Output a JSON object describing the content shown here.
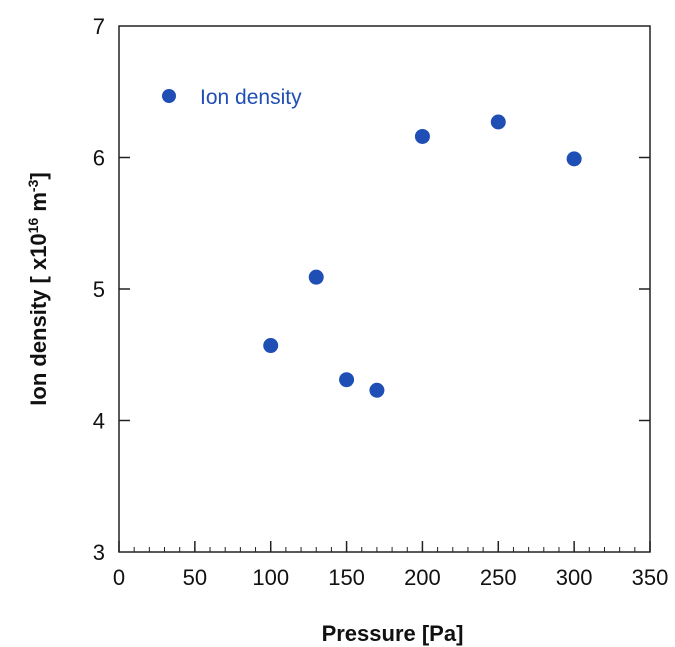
{
  "chart_data": {
    "type": "scatter",
    "xlabel": "Pressure [Pa]",
    "ylabel": {
      "prefix": "Ion density [ x10",
      "exp1": "16",
      "mid": " m",
      "exp2": "-3",
      "suffix": "]"
    },
    "xlim": [
      0,
      350
    ],
    "ylim": [
      3,
      7
    ],
    "xticks": [
      0,
      50,
      100,
      150,
      200,
      250,
      300,
      350
    ],
    "yticks": [
      3,
      4,
      5,
      6,
      7
    ],
    "x_minor_step": 10,
    "grid": false,
    "legend_position": "top-left",
    "series": [
      {
        "name": "Ion density",
        "color": "#1f4fb5",
        "marker": "circle",
        "points": [
          {
            "x": 100,
            "y": 4.57
          },
          {
            "x": 130,
            "y": 5.09
          },
          {
            "x": 150,
            "y": 4.31
          },
          {
            "x": 170,
            "y": 4.23
          },
          {
            "x": 200,
            "y": 6.16
          },
          {
            "x": 250,
            "y": 6.27
          },
          {
            "x": 300,
            "y": 5.99
          }
        ]
      }
    ]
  }
}
